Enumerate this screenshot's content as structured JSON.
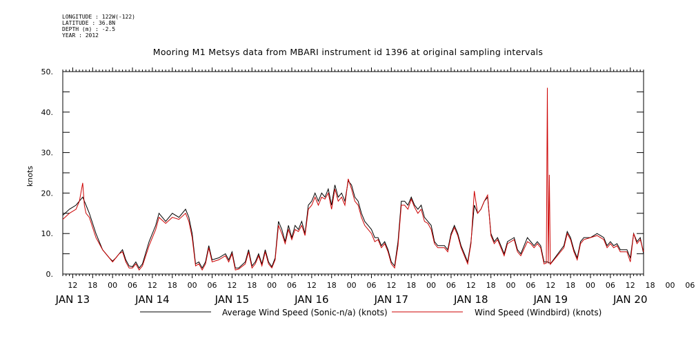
{
  "meta": {
    "longitude": "LONGITUDE : 122W(-122)",
    "latitude": "LATITUDE : 36.8N",
    "depth": "DEPTH (m) : -2.5",
    "year": "YEAR : 2012"
  },
  "title": "Mooring M1 Metsys data from MBARI instrument id 1396 at original sampling intervals",
  "colors": {
    "series1": "#000000",
    "series2": "#cc0000",
    "axis": "#000000"
  },
  "chart_data": {
    "type": "line",
    "ylabel": "knots",
    "ylim": [
      0,
      50
    ],
    "yticks": [
      "0.",
      "10.",
      "20.",
      "30.",
      "40.",
      "50."
    ],
    "xrange_hours_from_jan13_00": [
      9,
      184
    ],
    "hour_tick_labels": [
      "12",
      "18",
      "00",
      "06",
      "12",
      "18",
      "00",
      "06",
      "12",
      "18",
      "00",
      "06",
      "12",
      "18",
      "00",
      "06",
      "12",
      "18",
      "00",
      "06",
      "12",
      "18",
      "00",
      "06",
      "12",
      "18",
      "00",
      "06",
      "12",
      "18",
      "00",
      "06"
    ],
    "day_labels": [
      "JAN 13",
      "JAN 14",
      "JAN 15",
      "JAN 16",
      "JAN 17",
      "JAN 18",
      "JAN 19",
      "JAN 20"
    ],
    "grid": false,
    "legend_position": "bottom",
    "series": [
      {
        "name": "Average Wind Speed (Sonic-n/a) (knots)",
        "points": [
          [
            9,
            14.5
          ],
          [
            11,
            16
          ],
          [
            13,
            17
          ],
          [
            15,
            19
          ],
          [
            16,
            17
          ],
          [
            17,
            15
          ],
          [
            19,
            10
          ],
          [
            21,
            6
          ],
          [
            23,
            4
          ],
          [
            24,
            3.2
          ],
          [
            25,
            4
          ],
          [
            26,
            5
          ],
          [
            27,
            6
          ],
          [
            28,
            3.5
          ],
          [
            29,
            2
          ],
          [
            30,
            1.8
          ],
          [
            31,
            3
          ],
          [
            32,
            1.5
          ],
          [
            33,
            2.5
          ],
          [
            35,
            8
          ],
          [
            37,
            12
          ],
          [
            38,
            15
          ],
          [
            40,
            13
          ],
          [
            42,
            15
          ],
          [
            44,
            14
          ],
          [
            46,
            16
          ],
          [
            47,
            14
          ],
          [
            48,
            10
          ],
          [
            49,
            2.5
          ],
          [
            50,
            3
          ],
          [
            51,
            1.5
          ],
          [
            52,
            3
          ],
          [
            53,
            7
          ],
          [
            54,
            3.5
          ],
          [
            56,
            4
          ],
          [
            58,
            5
          ],
          [
            59,
            3.5
          ],
          [
            60,
            5.5
          ],
          [
            61,
            1.5
          ],
          [
            62,
            1.5
          ],
          [
            64,
            3
          ],
          [
            65,
            6
          ],
          [
            66,
            2
          ],
          [
            67,
            3
          ],
          [
            68,
            5
          ],
          [
            69,
            2.5
          ],
          [
            70,
            6
          ],
          [
            71,
            3
          ],
          [
            72,
            1.8
          ],
          [
            73,
            4
          ],
          [
            74,
            13
          ],
          [
            75,
            11
          ],
          [
            76,
            8
          ],
          [
            77,
            12
          ],
          [
            78,
            9
          ],
          [
            79,
            12
          ],
          [
            80,
            11
          ],
          [
            81,
            13
          ],
          [
            82,
            10
          ],
          [
            83,
            17
          ],
          [
            84,
            18
          ],
          [
            85,
            20
          ],
          [
            86,
            18
          ],
          [
            87,
            20
          ],
          [
            88,
            19
          ],
          [
            89,
            21
          ],
          [
            90,
            17
          ],
          [
            91,
            22
          ],
          [
            92,
            19
          ],
          [
            93,
            20
          ],
          [
            94,
            18
          ],
          [
            95,
            23
          ],
          [
            96,
            22
          ],
          [
            97,
            19
          ],
          [
            98,
            18
          ],
          [
            99,
            15
          ],
          [
            100,
            13
          ],
          [
            101,
            12
          ],
          [
            102,
            11
          ],
          [
            103,
            9
          ],
          [
            104,
            9
          ],
          [
            105,
            7
          ],
          [
            106,
            8
          ],
          [
            107,
            6
          ],
          [
            108,
            3
          ],
          [
            109,
            2
          ],
          [
            110,
            8
          ],
          [
            111,
            18
          ],
          [
            112,
            18
          ],
          [
            113,
            17
          ],
          [
            114,
            19
          ],
          [
            115,
            17
          ],
          [
            116,
            16
          ],
          [
            117,
            17
          ],
          [
            118,
            14
          ],
          [
            119,
            13
          ],
          [
            120,
            12
          ],
          [
            121,
            8
          ],
          [
            122,
            7
          ],
          [
            124,
            7
          ],
          [
            125,
            6
          ],
          [
            126,
            10
          ],
          [
            127,
            12
          ],
          [
            128,
            10
          ],
          [
            129,
            7
          ],
          [
            130,
            5
          ],
          [
            131,
            3
          ],
          [
            132,
            8
          ],
          [
            133,
            17
          ],
          [
            134,
            15
          ],
          [
            135,
            16
          ],
          [
            136,
            18
          ],
          [
            137,
            19
          ],
          [
            138,
            10
          ],
          [
            139,
            8
          ],
          [
            140,
            9
          ],
          [
            141,
            7
          ],
          [
            142,
            5
          ],
          [
            143,
            8
          ],
          [
            144,
            8.5
          ],
          [
            145,
            9
          ],
          [
            146,
            6
          ],
          [
            147,
            5
          ],
          [
            149,
            9
          ],
          [
            150,
            8
          ],
          [
            151,
            7
          ],
          [
            152,
            8
          ],
          [
            153,
            7
          ],
          [
            154,
            3
          ],
          [
            155,
            3
          ],
          [
            156,
            2.6
          ],
          [
            160,
            7
          ],
          [
            161,
            10.5
          ],
          [
            162,
            9
          ],
          [
            163,
            6
          ],
          [
            164,
            4
          ],
          [
            165,
            8
          ],
          [
            166,
            9
          ],
          [
            168,
            9
          ],
          [
            170,
            10
          ],
          [
            171,
            9.5
          ],
          [
            172,
            9
          ],
          [
            173,
            7
          ],
          [
            174,
            8
          ],
          [
            175,
            7
          ],
          [
            176,
            7.5
          ],
          [
            177,
            6
          ],
          [
            179,
            6
          ],
          [
            180,
            4
          ],
          [
            181,
            10
          ],
          [
            182,
            8
          ],
          [
            183,
            9
          ],
          [
            184,
            5
          ]
        ]
      },
      {
        "name": "Wind Speed (Windbird) (knots)",
        "points": [
          [
            9,
            13.5
          ],
          [
            11,
            15
          ],
          [
            13,
            16
          ],
          [
            14,
            18
          ],
          [
            15,
            22.5
          ],
          [
            15.5,
            17
          ],
          [
            16,
            15
          ],
          [
            17,
            14
          ],
          [
            19,
            9
          ],
          [
            21,
            6
          ],
          [
            23,
            4
          ],
          [
            24,
            3
          ],
          [
            25,
            4
          ],
          [
            26,
            5
          ],
          [
            27,
            5.5
          ],
          [
            28,
            3
          ],
          [
            29,
            1.5
          ],
          [
            30,
            1.5
          ],
          [
            31,
            2.5
          ],
          [
            32,
            1
          ],
          [
            33,
            2
          ],
          [
            35,
            7
          ],
          [
            37,
            11
          ],
          [
            38,
            14
          ],
          [
            40,
            12.5
          ],
          [
            42,
            14
          ],
          [
            44,
            13.5
          ],
          [
            46,
            15
          ],
          [
            47,
            13
          ],
          [
            48,
            9
          ],
          [
            49,
            2
          ],
          [
            50,
            2.5
          ],
          [
            51,
            1
          ],
          [
            52,
            2.5
          ],
          [
            53,
            6.5
          ],
          [
            54,
            3
          ],
          [
            56,
            3.5
          ],
          [
            58,
            4.5
          ],
          [
            59,
            3
          ],
          [
            60,
            5
          ],
          [
            61,
            1
          ],
          [
            62,
            1.2
          ],
          [
            64,
            2.5
          ],
          [
            65,
            5.5
          ],
          [
            66,
            1.5
          ],
          [
            67,
            2.5
          ],
          [
            68,
            4.5
          ],
          [
            69,
            2
          ],
          [
            70,
            5.5
          ],
          [
            71,
            2.5
          ],
          [
            72,
            1.5
          ],
          [
            73,
            3.5
          ],
          [
            74,
            12
          ],
          [
            75,
            10
          ],
          [
            76,
            7.5
          ],
          [
            77,
            11
          ],
          [
            78,
            8.5
          ],
          [
            79,
            11
          ],
          [
            80,
            10.5
          ],
          [
            81,
            12
          ],
          [
            82,
            9.5
          ],
          [
            83,
            16
          ],
          [
            84,
            17
          ],
          [
            85,
            19
          ],
          [
            86,
            17
          ],
          [
            87,
            19
          ],
          [
            88,
            18.5
          ],
          [
            89,
            20
          ],
          [
            90,
            16
          ],
          [
            91,
            21
          ],
          [
            92,
            18
          ],
          [
            93,
            19
          ],
          [
            94,
            17
          ],
          [
            95,
            23.5
          ],
          [
            96,
            21
          ],
          [
            97,
            18
          ],
          [
            98,
            17
          ],
          [
            99,
            14
          ],
          [
            100,
            12
          ],
          [
            101,
            11
          ],
          [
            102,
            10
          ],
          [
            103,
            8
          ],
          [
            104,
            8.5
          ],
          [
            105,
            6.5
          ],
          [
            106,
            7.5
          ],
          [
            107,
            5.5
          ],
          [
            108,
            2.5
          ],
          [
            109,
            1.5
          ],
          [
            110,
            7
          ],
          [
            111,
            17
          ],
          [
            112,
            17
          ],
          [
            113,
            16
          ],
          [
            114,
            18.5
          ],
          [
            115,
            16.5
          ],
          [
            116,
            15
          ],
          [
            117,
            16
          ],
          [
            118,
            13
          ],
          [
            119,
            12.5
          ],
          [
            120,
            11
          ],
          [
            121,
            7.5
          ],
          [
            122,
            6.5
          ],
          [
            124,
            6.5
          ],
          [
            125,
            5.5
          ],
          [
            126,
            9.5
          ],
          [
            127,
            11.5
          ],
          [
            128,
            9.5
          ],
          [
            129,
            6.5
          ],
          [
            130,
            4.5
          ],
          [
            131,
            2.5
          ],
          [
            132,
            7.5
          ],
          [
            133,
            20.5
          ],
          [
            134,
            15
          ],
          [
            135,
            16
          ],
          [
            136,
            18
          ],
          [
            137,
            19.5
          ],
          [
            138,
            9.5
          ],
          [
            139,
            7.5
          ],
          [
            140,
            8.5
          ],
          [
            141,
            6.5
          ],
          [
            142,
            4.5
          ],
          [
            143,
            7.5
          ],
          [
            144,
            8
          ],
          [
            145,
            8.5
          ],
          [
            146,
            5.5
          ],
          [
            147,
            4.5
          ],
          [
            149,
            8
          ],
          [
            150,
            7.5
          ],
          [
            151,
            6.5
          ],
          [
            152,
            7.5
          ],
          [
            153,
            6.5
          ],
          [
            154,
            2.5
          ],
          [
            154.7,
            2.7
          ],
          [
            155,
            46
          ],
          [
            155.3,
            2.6
          ],
          [
            155.6,
            24.5
          ],
          [
            155.9,
            2.4
          ],
          [
            156,
            2.5
          ],
          [
            160,
            6.5
          ],
          [
            161,
            10
          ],
          [
            162,
            8.5
          ],
          [
            163,
            5.5
          ],
          [
            164,
            3.5
          ],
          [
            165,
            7.5
          ],
          [
            166,
            8.5
          ],
          [
            168,
            9
          ],
          [
            170,
            9.5
          ],
          [
            171,
            9
          ],
          [
            172,
            8.5
          ],
          [
            173,
            6.5
          ],
          [
            174,
            7.5
          ],
          [
            175,
            6.5
          ],
          [
            176,
            7
          ],
          [
            177,
            5.5
          ],
          [
            179,
            5.5
          ],
          [
            180,
            3
          ],
          [
            181,
            10
          ],
          [
            182,
            7.5
          ],
          [
            183,
            8.5
          ],
          [
            184,
            5.5
          ]
        ]
      }
    ]
  }
}
